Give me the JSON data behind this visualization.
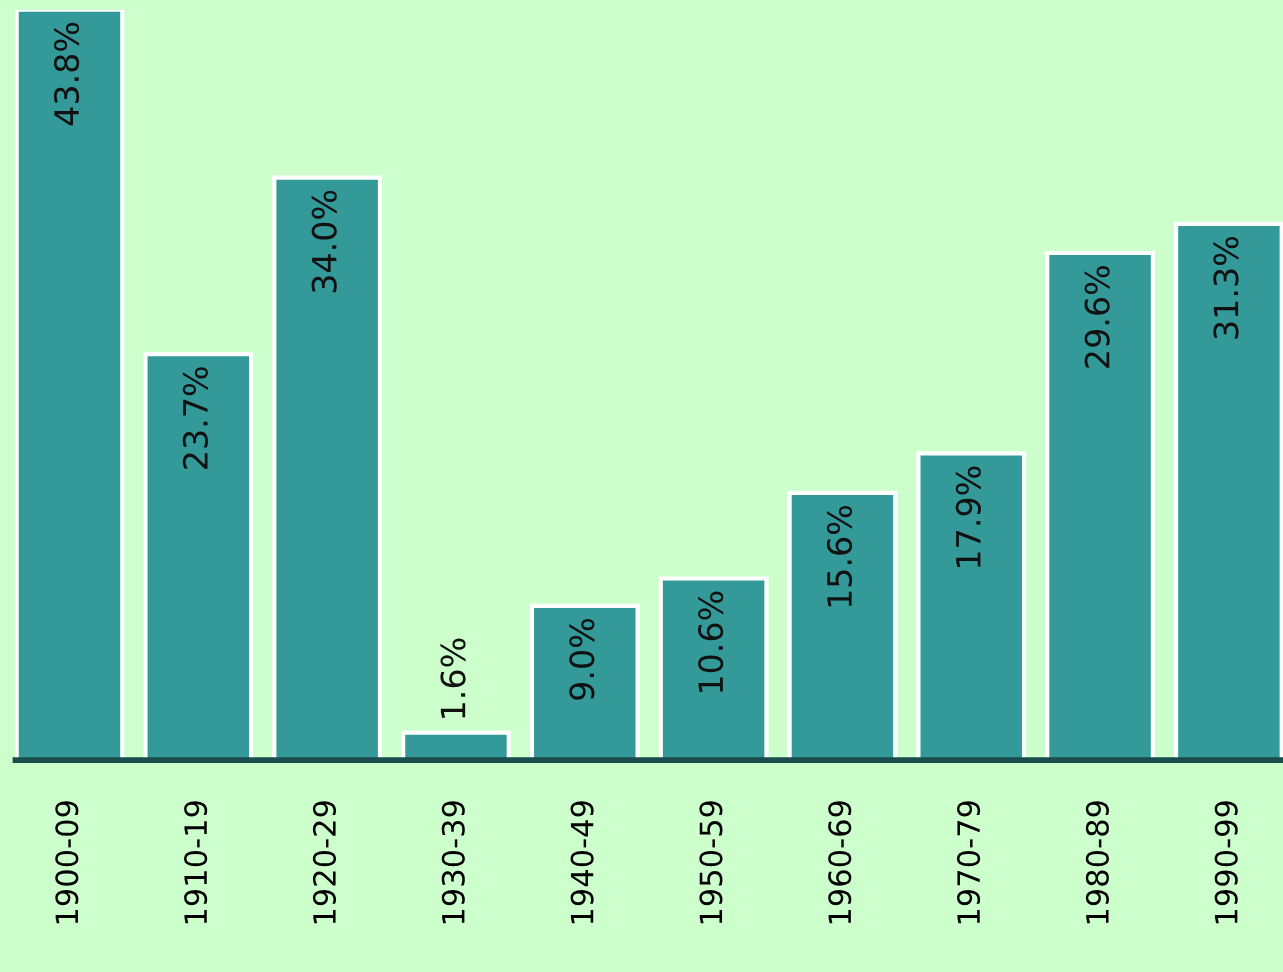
{
  "chart_data": {
    "type": "bar",
    "categories": [
      "1900-09",
      "1910-19",
      "1920-29",
      "1930-39",
      "1940-49",
      "1950-59",
      "1960-69",
      "1970-79",
      "1980-89",
      "1990-99"
    ],
    "values": [
      43.8,
      23.7,
      34.0,
      1.6,
      9.0,
      10.6,
      15.6,
      17.9,
      29.6,
      31.3
    ],
    "value_labels": [
      "43.8%",
      "23.7%",
      "34.0%",
      "1.6%",
      "9.0%",
      "10.6%",
      "15.6%",
      "17.9%",
      "29.6%",
      "31.3%"
    ],
    "color": "#339999",
    "grid": false,
    "legend": false
  }
}
